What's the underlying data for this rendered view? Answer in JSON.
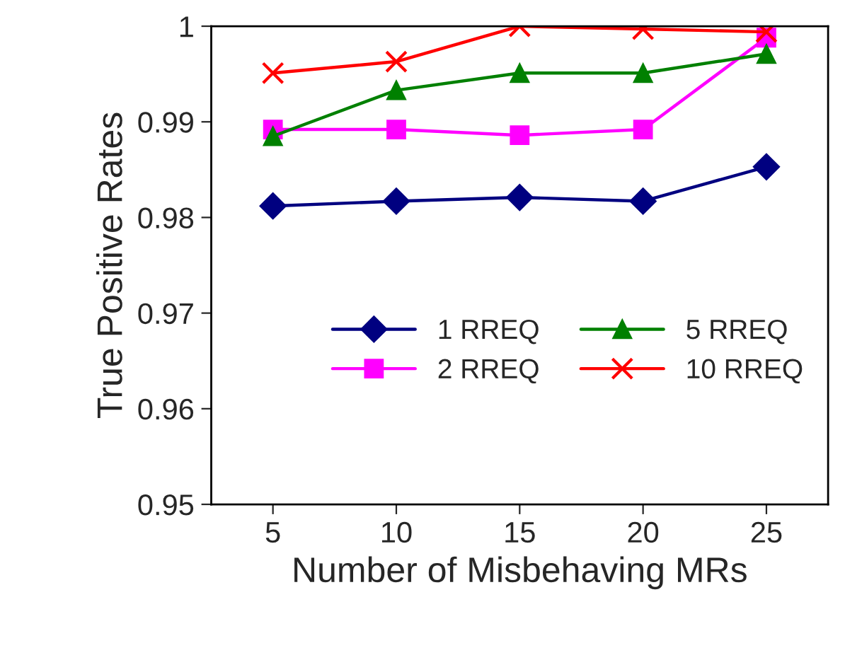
{
  "chart_data": {
    "type": "line",
    "xlabel": "Number of Misbehaving MRs",
    "ylabel": "True Positive Rates",
    "categories": [
      "5",
      "10",
      "15",
      "20",
      "25"
    ],
    "series": [
      {
        "name": "1 RREQ",
        "color": "#000080",
        "marker": "diamond",
        "values": [
          0.9812,
          0.9817,
          0.9821,
          0.9817,
          0.9853
        ]
      },
      {
        "name": "2 RREQ",
        "color": "#ff00ff",
        "marker": "square",
        "values": [
          0.9892,
          0.9892,
          0.9886,
          0.9892,
          0.9988
        ]
      },
      {
        "name": "5 RREQ",
        "color": "#008000",
        "marker": "triangle",
        "values": [
          0.9885,
          0.9933,
          0.9951,
          0.9951,
          0.9971
        ]
      },
      {
        "name": "10 RREQ",
        "color": "#ff0000",
        "marker": "cross",
        "values": [
          0.9951,
          0.9963,
          1.0,
          0.9997,
          0.9994
        ]
      }
    ],
    "ylim": [
      0.95,
      1.0
    ],
    "yticks": [
      {
        "value": 0.95,
        "label": "0.95"
      },
      {
        "value": 0.96,
        "label": "0.96"
      },
      {
        "value": 0.97,
        "label": "0.97"
      },
      {
        "value": 0.98,
        "label": "0.98"
      },
      {
        "value": 0.99,
        "label": "0.99"
      },
      {
        "value": 1.0,
        "label": "1"
      }
    ],
    "grid": false,
    "legend": "bottom right"
  }
}
